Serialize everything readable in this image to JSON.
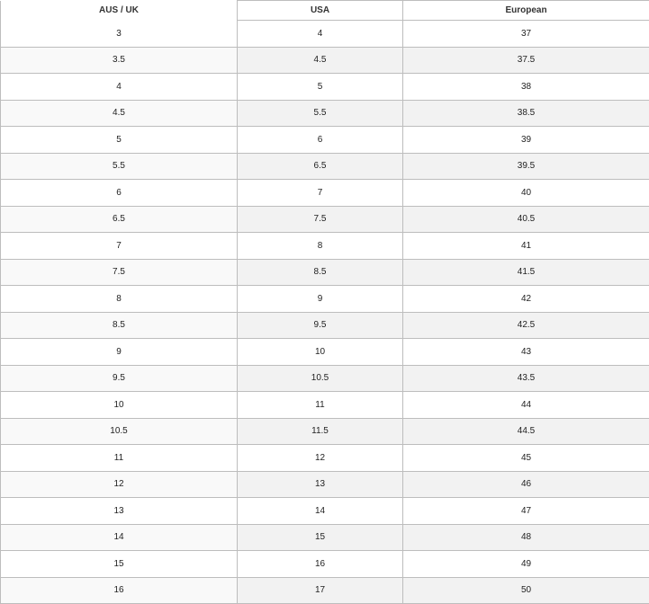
{
  "headers": [
    "AUS / UK",
    "USA",
    "European"
  ],
  "rows": [
    [
      "3",
      "4",
      "37"
    ],
    [
      "3.5",
      "4.5",
      "37.5"
    ],
    [
      "4",
      "5",
      "38"
    ],
    [
      "4.5",
      "5.5",
      "38.5"
    ],
    [
      "5",
      "6",
      "39"
    ],
    [
      "5.5",
      "6.5",
      "39.5"
    ],
    [
      "6",
      "7",
      "40"
    ],
    [
      "6.5",
      "7.5",
      "40.5"
    ],
    [
      "7",
      "8",
      "41"
    ],
    [
      "7.5",
      "8.5",
      "41.5"
    ],
    [
      "8",
      "9",
      "42"
    ],
    [
      "8.5",
      "9.5",
      "42.5"
    ],
    [
      "9",
      "10",
      "43"
    ],
    [
      "9.5",
      "10.5",
      "43.5"
    ],
    [
      "10",
      "11",
      "44"
    ],
    [
      "10.5",
      "11.5",
      "44.5"
    ],
    [
      "11",
      "12",
      "45"
    ],
    [
      "12",
      "13",
      "46"
    ],
    [
      "13",
      "14",
      "47"
    ],
    [
      "14",
      "15",
      "48"
    ],
    [
      "15",
      "16",
      "49"
    ],
    [
      "16",
      "17",
      "50"
    ]
  ]
}
